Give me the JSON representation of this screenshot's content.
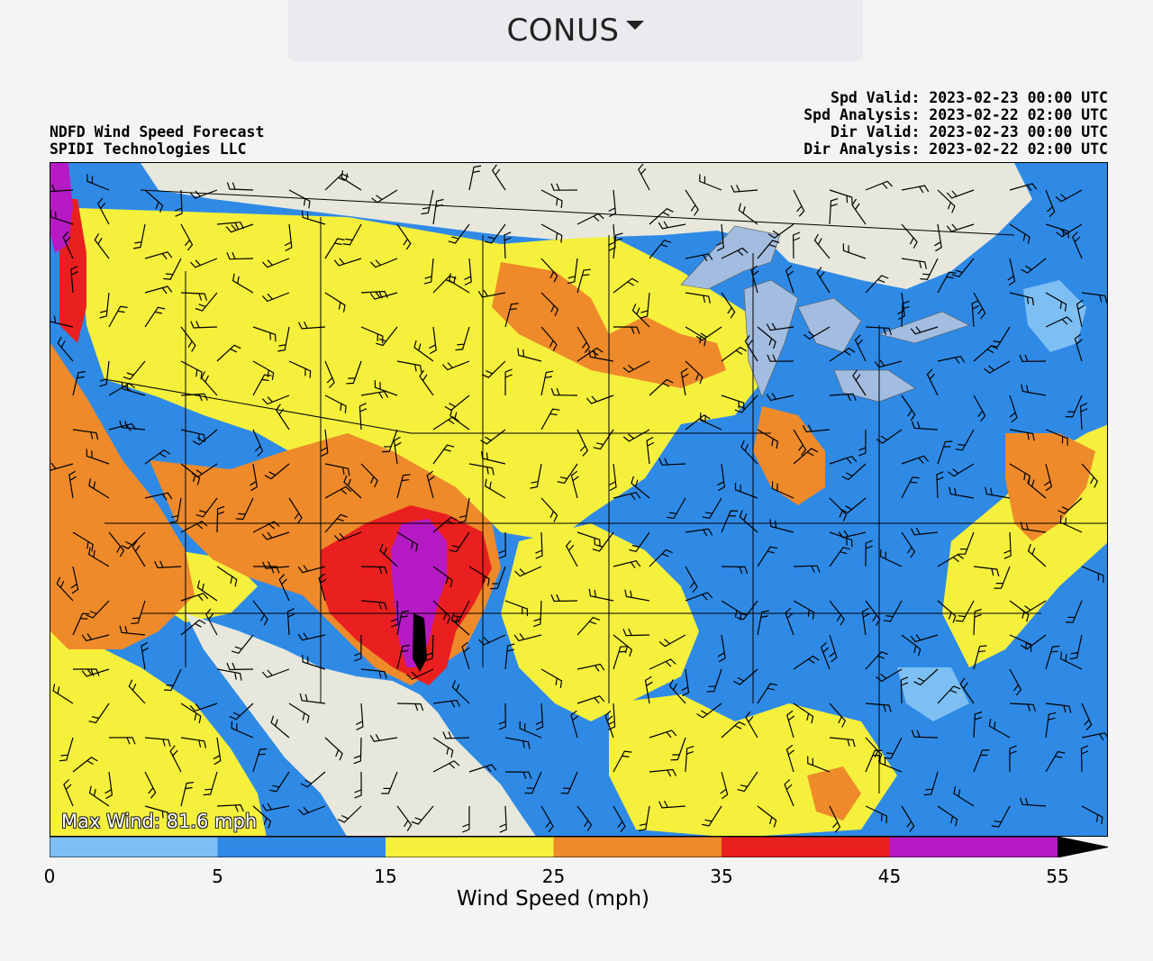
{
  "region_selector": {
    "label": "CONUS",
    "icon": "caret-down-icon"
  },
  "title_lines": [
    "NDFD Wind Speed Forecast",
    "SPIDI Technologies LLC"
  ],
  "valid_lines": [
    "Spd Valid: 2023-02-23 00:00 UTC",
    "Spd Analysis: 2023-02-22 02:00 UTC",
    "Dir Valid: 2023-02-23 00:00 UTC",
    "Dir Analysis: 2023-02-22 02:00 UTC"
  ],
  "max_wind": "Max Wind: 81.6 mph",
  "colorbar": {
    "label": "Wind Speed (mph)",
    "ticks": [
      "0",
      "5",
      "15",
      "25",
      "35",
      "45",
      "55"
    ],
    "bins": [
      {
        "from": 0,
        "to": 5,
        "color": "#7dbff2"
      },
      {
        "from": 5,
        "to": 15,
        "color": "#2f8ae6"
      },
      {
        "from": 15,
        "to": 25,
        "color": "#f5f03c"
      },
      {
        "from": 25,
        "to": 35,
        "color": "#ee8a2a"
      },
      {
        "from": 35,
        "to": 45,
        "color": "#ea1f1f"
      },
      {
        "from": 45,
        "to": 55,
        "color": "#b61ac4"
      }
    ],
    "extend_color": "#000000"
  },
  "map_colors": {
    "land": "#e7e7dc",
    "water": "#a3bde0",
    "light_blue": "#7dbff2",
    "blue": "#2f8ae6",
    "yellow": "#f5f03c",
    "orange": "#ee8a2a",
    "red": "#ea1f1f",
    "purple": "#b61ac4"
  }
}
